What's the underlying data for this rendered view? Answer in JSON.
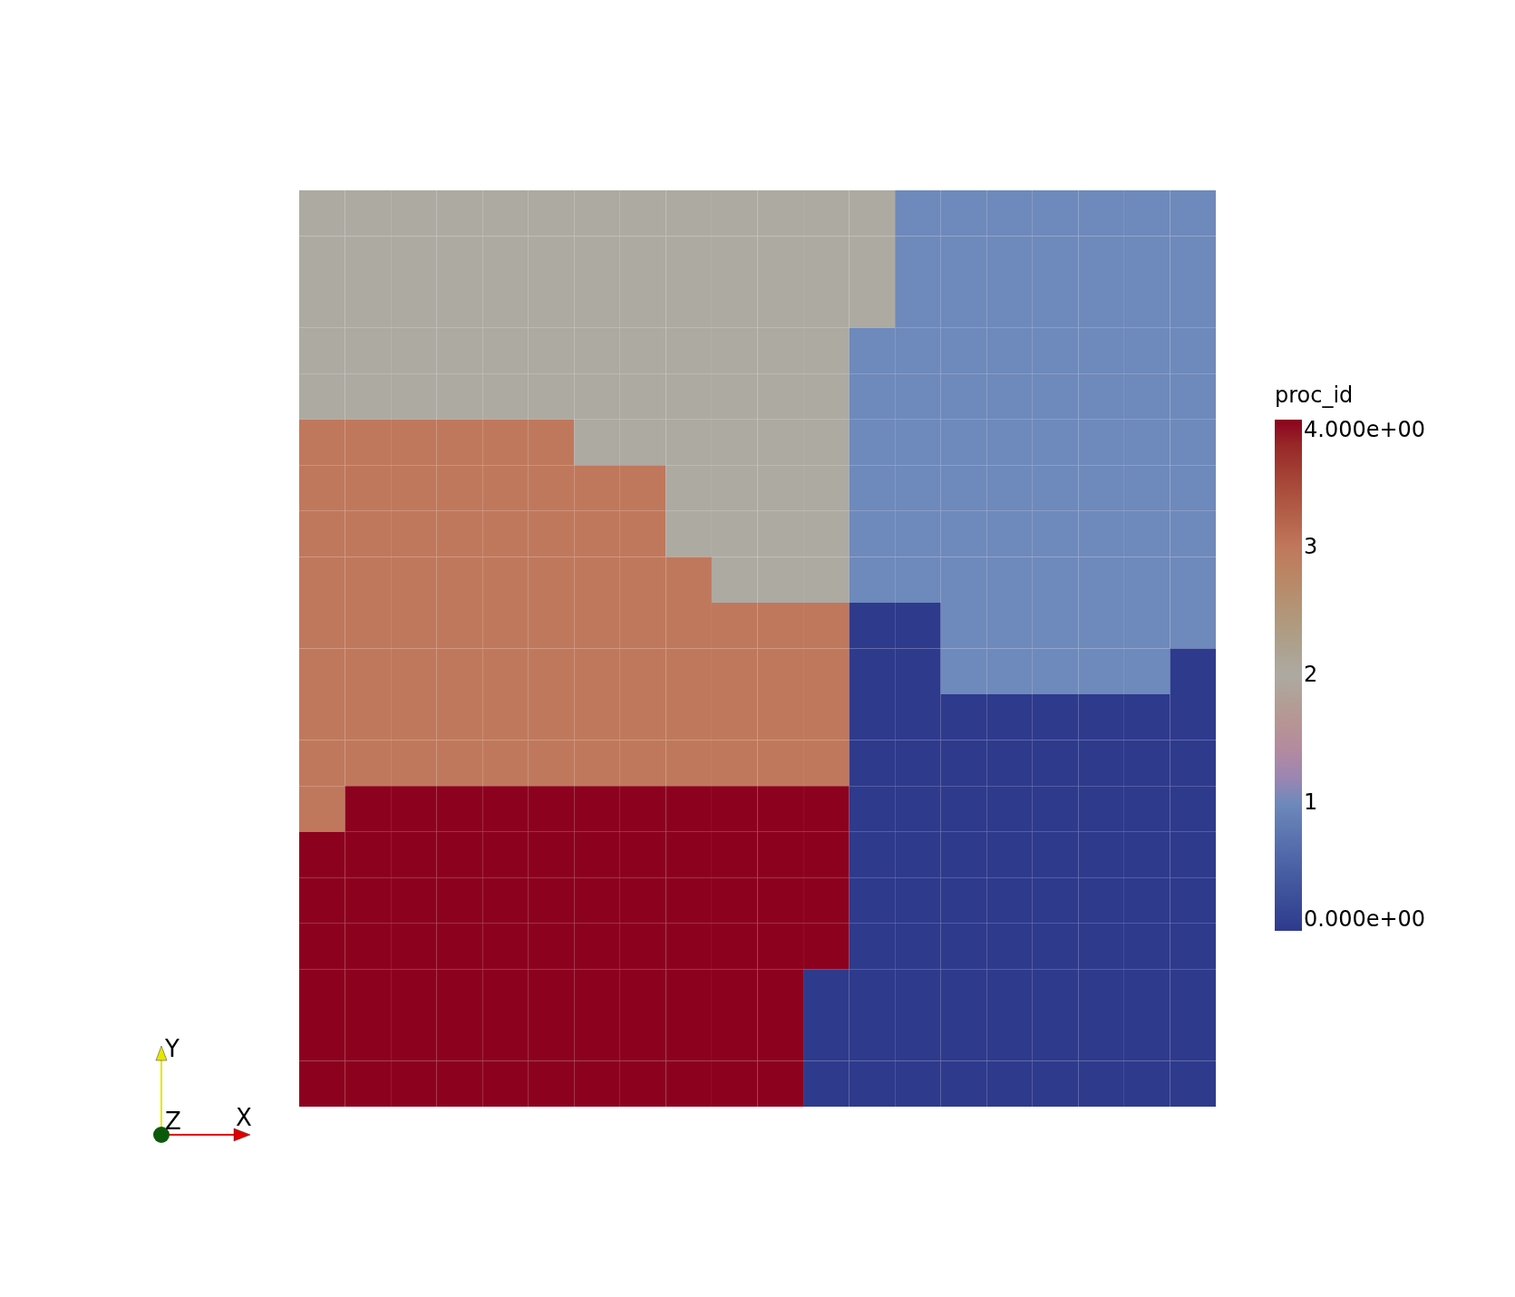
{
  "chart_data": {
    "type": "heatmap",
    "clabel": "proc_id",
    "annotations": [
      "X",
      "Y",
      "Z"
    ],
    "tick_labels": false,
    "categories": [
      null,
      null,
      null,
      null,
      null,
      null,
      null,
      null,
      null,
      null,
      null,
      null,
      null,
      null,
      null,
      null,
      null,
      null,
      null,
      null
    ],
    "y_categories": [
      null,
      null,
      null,
      null,
      null,
      null,
      null,
      null,
      null,
      null,
      null,
      null,
      null,
      null,
      null,
      null,
      null,
      null,
      null,
      null
    ],
    "cells": [
      [
        2,
        2,
        2,
        2,
        2,
        2,
        2,
        2,
        2,
        2,
        2,
        2,
        2,
        1,
        1,
        1,
        1,
        1,
        1,
        1
      ],
      [
        2,
        2,
        2,
        2,
        2,
        2,
        2,
        2,
        2,
        2,
        2,
        2,
        2,
        1,
        1,
        1,
        1,
        1,
        1,
        1
      ],
      [
        2,
        2,
        2,
        2,
        2,
        2,
        2,
        2,
        2,
        2,
        2,
        2,
        2,
        1,
        1,
        1,
        1,
        1,
        1,
        1
      ],
      [
        2,
        2,
        2,
        2,
        2,
        2,
        2,
        2,
        2,
        2,
        2,
        2,
        1,
        1,
        1,
        1,
        1,
        1,
        1,
        1
      ],
      [
        2,
        2,
        2,
        2,
        2,
        2,
        2,
        2,
        2,
        2,
        2,
        2,
        1,
        1,
        1,
        1,
        1,
        1,
        1,
        1
      ],
      [
        3,
        3,
        3,
        3,
        3,
        3,
        2,
        2,
        2,
        2,
        2,
        2,
        1,
        1,
        1,
        1,
        1,
        1,
        1,
        1
      ],
      [
        3,
        3,
        3,
        3,
        3,
        3,
        3,
        3,
        2,
        2,
        2,
        2,
        1,
        1,
        1,
        1,
        1,
        1,
        1,
        1
      ],
      [
        3,
        3,
        3,
        3,
        3,
        3,
        3,
        3,
        2,
        2,
        2,
        2,
        1,
        1,
        1,
        1,
        1,
        1,
        1,
        1
      ],
      [
        3,
        3,
        3,
        3,
        3,
        3,
        3,
        3,
        3,
        2,
        2,
        2,
        1,
        1,
        1,
        1,
        1,
        1,
        1,
        1
      ],
      [
        3,
        3,
        3,
        3,
        3,
        3,
        3,
        3,
        3,
        3,
        3,
        3,
        0,
        0,
        1,
        1,
        1,
        1,
        1,
        1
      ],
      [
        3,
        3,
        3,
        3,
        3,
        3,
        3,
        3,
        3,
        3,
        3,
        3,
        0,
        0,
        1,
        1,
        1,
        1,
        1,
        0
      ],
      [
        3,
        3,
        3,
        3,
        3,
        3,
        3,
        3,
        3,
        3,
        3,
        3,
        0,
        0,
        0,
        0,
        0,
        0,
        0,
        0
      ],
      [
        3,
        3,
        3,
        3,
        3,
        3,
        3,
        3,
        3,
        3,
        3,
        3,
        0,
        0,
        0,
        0,
        0,
        0,
        0,
        0
      ],
      [
        3,
        4,
        4,
        4,
        4,
        4,
        4,
        4,
        4,
        4,
        4,
        4,
        0,
        0,
        0,
        0,
        0,
        0,
        0,
        0
      ],
      [
        4,
        4,
        4,
        4,
        4,
        4,
        4,
        4,
        4,
        4,
        4,
        4,
        0,
        0,
        0,
        0,
        0,
        0,
        0,
        0
      ],
      [
        4,
        4,
        4,
        4,
        4,
        4,
        4,
        4,
        4,
        4,
        4,
        4,
        0,
        0,
        0,
        0,
        0,
        0,
        0,
        0
      ],
      [
        4,
        4,
        4,
        4,
        4,
        4,
        4,
        4,
        4,
        4,
        4,
        4,
        0,
        0,
        0,
        0,
        0,
        0,
        0,
        0
      ],
      [
        4,
        4,
        4,
        4,
        4,
        4,
        4,
        4,
        4,
        4,
        4,
        0,
        0,
        0,
        0,
        0,
        0,
        0,
        0,
        0
      ],
      [
        4,
        4,
        4,
        4,
        4,
        4,
        4,
        4,
        4,
        4,
        4,
        0,
        0,
        0,
        0,
        0,
        0,
        0,
        0,
        0
      ],
      [
        4,
        4,
        4,
        4,
        4,
        4,
        4,
        4,
        4,
        4,
        4,
        0,
        0,
        0,
        0,
        0,
        0,
        0,
        0,
        0
      ]
    ],
    "clim": [
      0,
      4
    ],
    "cticks": [
      {
        "value": 0,
        "label": "0.000e+00"
      },
      1,
      2,
      3,
      {
        "value": 4,
        "label": "4.000e+00"
      }
    ]
  }
}
